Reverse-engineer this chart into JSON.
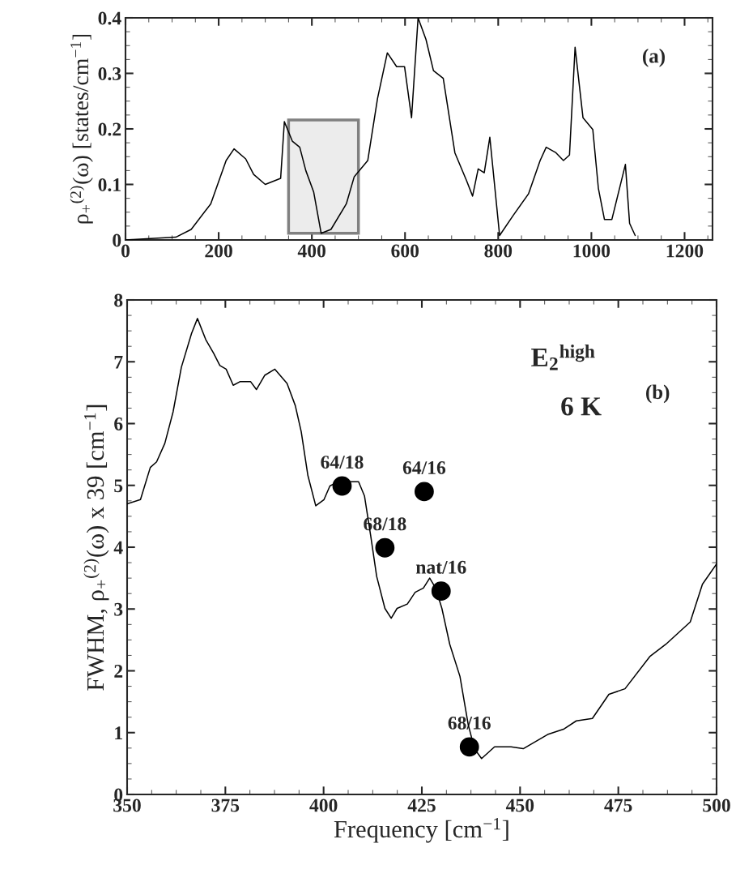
{
  "chart_data": [
    {
      "type": "line",
      "ylabel": "ρ$_{+}$$^{(2)}$(ω) [states/cm$^{−1}$]",
      "xlim": [
        0,
        1260
      ],
      "xticks": [
        0,
        200,
        400,
        600,
        800,
        1000,
        1200
      ],
      "ylim": [
        0,
        0.4
      ],
      "yticks": [
        0,
        0.1,
        0.2,
        0.3,
        0.4
      ],
      "grid": false,
      "legend": false,
      "series": [
        {
          "color": "#000000",
          "x": [
            0,
            108,
            141,
            183,
            216,
            233,
            258,
            275,
            300,
            333,
            341,
            358,
            374,
            387,
            404,
            420,
            441,
            474,
            491,
            520,
            541,
            562,
            582,
            599,
            614,
            628,
            645,
            661,
            682,
            707,
            732,
            745,
            757,
            770,
            782,
            803,
            832,
            865,
            890,
            903,
            924,
            940,
            953,
            965,
            982,
            1003,
            1015,
            1028,
            1044,
            1073,
            1082,
            1094
          ],
          "values": [
            0,
            0.005,
            0.019,
            0.065,
            0.143,
            0.164,
            0.146,
            0.118,
            0.1,
            0.111,
            0.213,
            0.178,
            0.167,
            0.125,
            0.086,
            0.012,
            0.019,
            0.065,
            0.114,
            0.143,
            0.255,
            0.337,
            0.312,
            0.312,
            0.22,
            0.4,
            0.361,
            0.305,
            0.291,
            0.157,
            0.107,
            0.079,
            0.128,
            0.121,
            0.185,
            0.008,
            0.044,
            0.083,
            0.143,
            0.167,
            0.157,
            0.143,
            0.153,
            0.347,
            0.22,
            0.199,
            0.093,
            0.037,
            0.037,
            0.136,
            0.03,
            0.008
          ]
        }
      ],
      "bands": [
        {
          "axis": "x",
          "from": 350,
          "to": 500,
          "color": "#808080"
        }
      ],
      "annotations": [
        "(a)"
      ]
    },
    {
      "type": "line",
      "xlabel": "Frequency [cm$^{−1}$]",
      "ylabel": "FWHM, ρ$_{+}$$^{(2)}$(ω) x 39 [cm$^{−1}$]",
      "xlim": [
        350,
        500
      ],
      "xticks": [
        350,
        375,
        400,
        425,
        450,
        475,
        500
      ],
      "ylim": [
        0,
        8
      ],
      "yticks": [
        0,
        1,
        2,
        3,
        4,
        5,
        6,
        7,
        8
      ],
      "grid": false,
      "legend": false,
      "series": [
        {
          "color": "#000000",
          "marker": "none",
          "x": [
            350,
            353.4,
            355.9,
            357.5,
            359.6,
            361.7,
            363.8,
            366.4,
            367.9,
            370,
            372,
            373.6,
            375.2,
            377,
            378.8,
            381.4,
            382.9,
            385,
            387.6,
            390.7,
            392.8,
            394.3,
            396,
            398,
            400.1,
            401.6,
            403.7,
            408.9,
            410.4,
            412,
            413.5,
            415.6,
            417.2,
            418.7,
            421.3,
            423.3,
            425.4,
            427,
            428.5,
            430.1,
            432.1,
            434.7,
            436.8,
            438.4,
            440.2,
            443.5,
            447.7,
            450.8,
            457,
            461.2,
            464.3,
            468.4,
            472.6,
            476.7,
            483,
            487.1,
            493.3,
            496.4,
            500
          ],
          "values": [
            4.7,
            4.77,
            5.29,
            5.38,
            5.68,
            6.19,
            6.91,
            7.46,
            7.7,
            7.36,
            7.14,
            6.94,
            6.88,
            6.62,
            6.68,
            6.68,
            6.55,
            6.78,
            6.88,
            6.65,
            6.29,
            5.87,
            5.16,
            4.67,
            4.77,
            4.99,
            5.06,
            5.06,
            4.83,
            4.18,
            3.53,
            3.01,
            2.85,
            3.01,
            3.08,
            3.27,
            3.34,
            3.5,
            3.34,
            3.01,
            2.43,
            1.91,
            1.13,
            0.74,
            0.58,
            0.77,
            0.77,
            0.74,
            0.97,
            1.06,
            1.19,
            1.23,
            1.62,
            1.71,
            2.23,
            2.43,
            2.79,
            3.4,
            3.73
          ]
        },
        {
          "type": "scatter",
          "color": "#000000",
          "marker": "circle",
          "x": [
            404.7,
            425.6,
            415.6,
            429.9,
            437.1
          ],
          "values": [
            4.99,
            4.9,
            3.99,
            3.29,
            0.77
          ]
        }
      ],
      "annotations": [
        {
          "text": "64/18",
          "x": 404.7,
          "y": 4.99
        },
        {
          "text": "64/16",
          "x": 425.6,
          "y": 4.9
        },
        {
          "text": "68/18",
          "x": 415.6,
          "y": 3.99
        },
        {
          "text": "nat/16",
          "x": 429.9,
          "y": 3.29
        },
        {
          "text": "68/16",
          "x": 437.1,
          "y": 0.77
        },
        "E$_{2}$$^{high}$",
        "6 K",
        "(b)"
      ]
    }
  ]
}
